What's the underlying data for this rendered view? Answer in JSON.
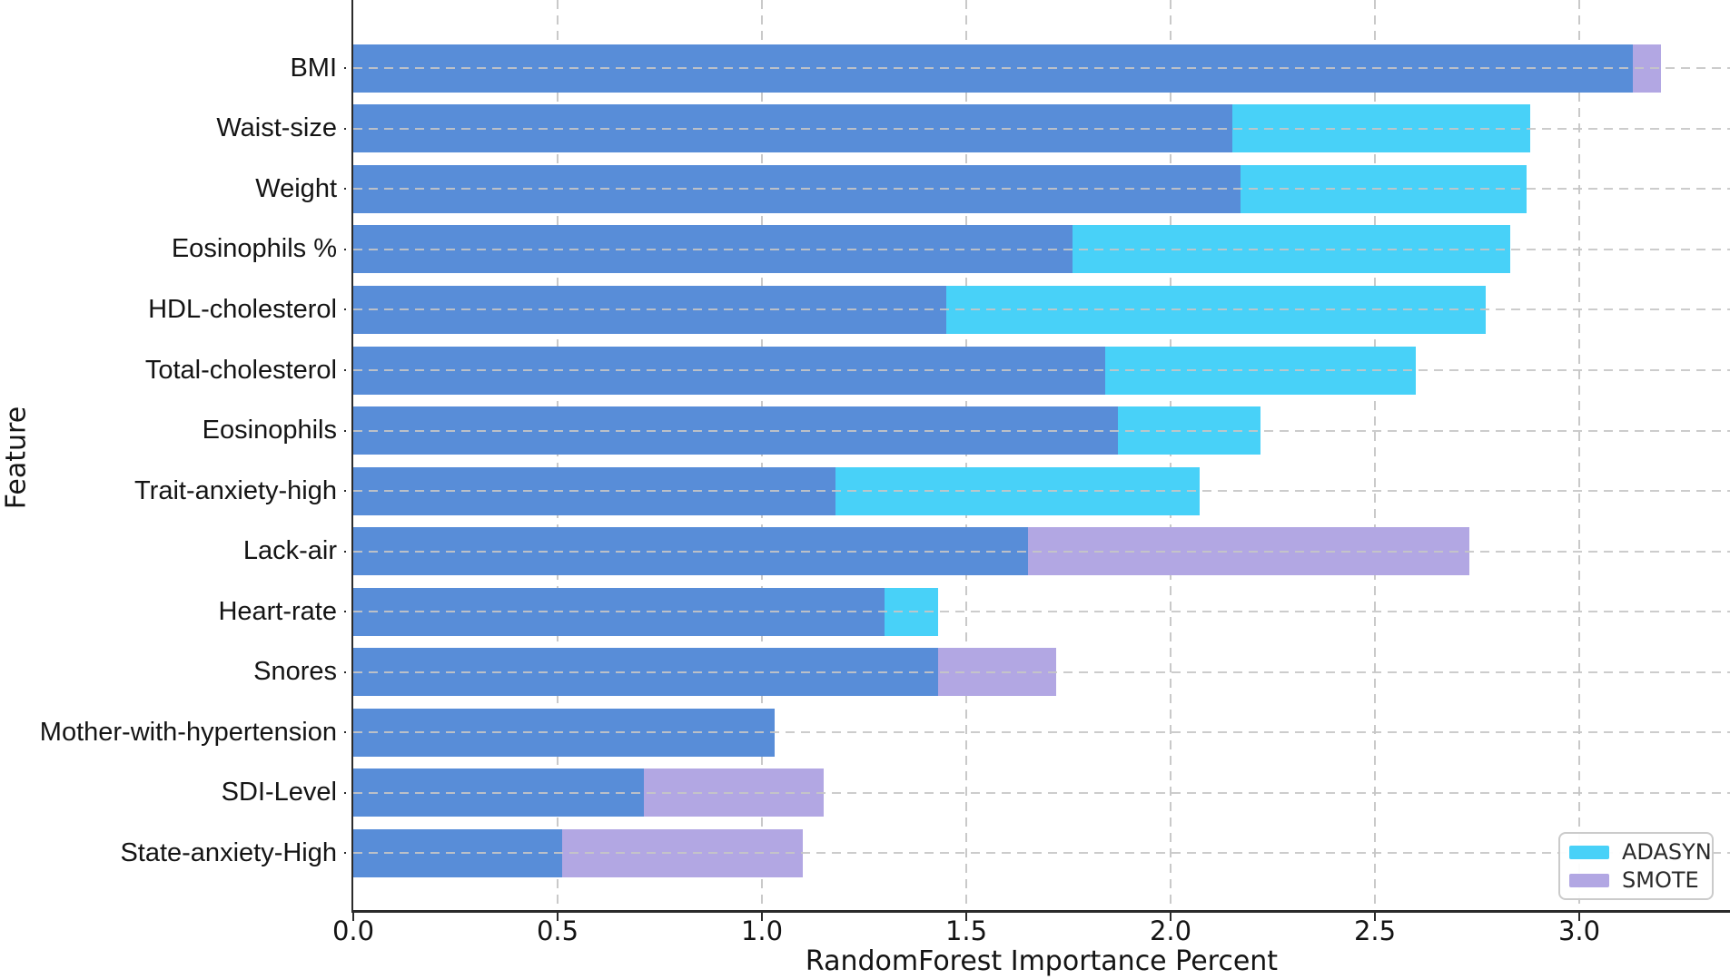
{
  "chart_data": {
    "type": "bar",
    "orientation": "horizontal",
    "xlabel": "RandomForest Importance Percent",
    "ylabel": "Feature",
    "categories": [
      "BMI",
      "Waist-size",
      "Weight",
      "Eosinophils %",
      "HDL-cholesterol",
      "Total-cholesterol",
      "Eosinophils",
      "Trait-anxiety-high",
      "Lack-air",
      "Heart-rate",
      "Snores",
      "Mother-with-hypertension",
      "SDI-Level",
      "State-anxiety-High"
    ],
    "series": [
      {
        "name": "ADASYN",
        "color": "#48D1F8",
        "values": [
          3.13,
          2.88,
          2.87,
          2.83,
          2.77,
          2.6,
          2.22,
          2.07,
          1.65,
          1.43,
          1.43,
          1.03,
          0.71,
          0.51
        ]
      },
      {
        "name": "SMOTE",
        "color": "#B2A7E3",
        "values": [
          3.2,
          2.15,
          2.17,
          1.76,
          1.45,
          1.84,
          1.87,
          1.18,
          2.73,
          1.3,
          1.72,
          1.03,
          1.15,
          1.1
        ]
      }
    ],
    "bars_overlap": true,
    "overlap_color": "#588DD8",
    "xlim": [
      0,
      3.37
    ],
    "x_ticks": [
      0.0,
      0.5,
      1.0,
      1.5,
      2.0,
      2.5,
      3.0
    ],
    "x_tick_labels": [
      "0.0",
      "0.5",
      "1.0",
      "1.5",
      "2.0",
      "2.5",
      "3.0"
    ],
    "grid": "dashed gridlines on both axes",
    "grid_color": "#c6c6c6",
    "legend_position": "lower right",
    "legend_entries": [
      {
        "label": "ADASYN",
        "color": "#48D1F8"
      },
      {
        "label": "SMOTE",
        "color": "#B2A7E3"
      }
    ]
  },
  "colors": {
    "background": "#ffffff",
    "spine": "#2b2b2b",
    "text": "#141414"
  }
}
